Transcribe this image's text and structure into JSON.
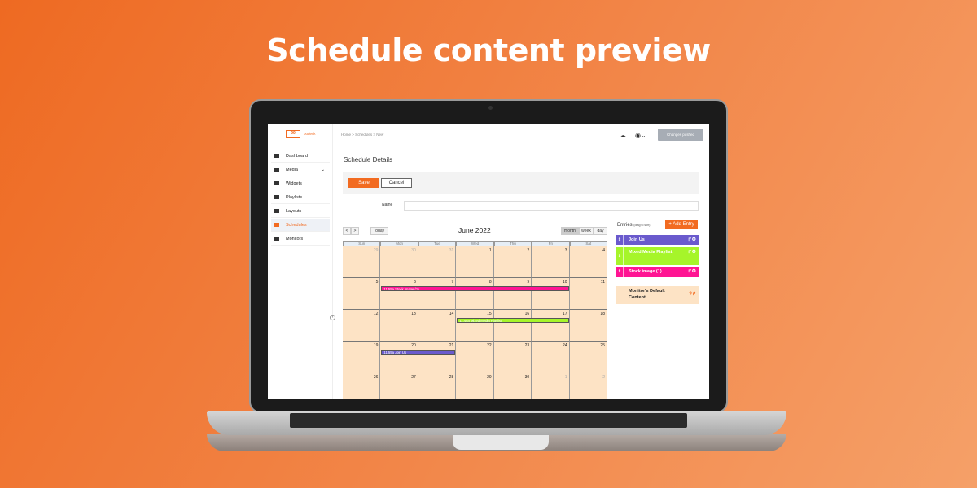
{
  "headline": "Schedule content preview",
  "colors": {
    "accent": "#f26b21",
    "join_us": "#6a5acd",
    "mixed_media": "#a6f52a",
    "stock_image": "#ff1493",
    "default_content": "#fde3c5"
  },
  "logo": {
    "mark": "99",
    "text": "podeck"
  },
  "sidebar": {
    "items": [
      {
        "label": "Dashboard",
        "icon": "bar-chart-icon"
      },
      {
        "label": "Media",
        "icon": "folder-icon",
        "chevron": "⌄"
      },
      {
        "label": "Widgets",
        "icon": "grid-icon"
      },
      {
        "label": "Playlists",
        "icon": "playlist-icon"
      },
      {
        "label": "Layouts",
        "icon": "layout-icon"
      },
      {
        "label": "Schedules",
        "icon": "calendar-icon",
        "active": true
      },
      {
        "label": "Monitors",
        "icon": "monitor-icon"
      }
    ],
    "collapse": "‹"
  },
  "header": {
    "breadcrumb": "Home > Schedules > New",
    "cloud_icon": "☁",
    "user_icon": "◉⌄",
    "status_button": "Changes pushed"
  },
  "page": {
    "title": "Schedule Details",
    "save": "Save",
    "cancel": "Cancel",
    "name_label": "Name",
    "name_value": ""
  },
  "calendar": {
    "prev": "<",
    "next": ">",
    "today": "today",
    "title": "June 2022",
    "views": [
      "month",
      "week",
      "day"
    ],
    "active_view": "month",
    "days": [
      "Sun",
      "Mon",
      "Tue",
      "Wed",
      "Thu",
      "Fri",
      "Sat"
    ],
    "weeks": [
      [
        "29",
        "30",
        "31",
        "1",
        "2",
        "3",
        "4"
      ],
      [
        "5",
        "6",
        "7",
        "8",
        "9",
        "10",
        "11"
      ],
      [
        "12",
        "13",
        "14",
        "15",
        "16",
        "17",
        "18"
      ],
      [
        "19",
        "20",
        "21",
        "22",
        "23",
        "24",
        "25"
      ],
      [
        "26",
        "27",
        "28",
        "29",
        "30",
        "1",
        "2"
      ]
    ],
    "events": [
      {
        "label": "11:55a Stock Image (1)",
        "week": 1,
        "start": 1,
        "end": 5,
        "color": "#ff1493"
      },
      {
        "label": "11:48a Mixed Media Playlist",
        "week": 2,
        "start": 3,
        "end": 5,
        "color": "#a6f52a"
      },
      {
        "label": "11:55a Join Us",
        "week": 3,
        "start": 1,
        "end": 2,
        "color": "#6a5acd"
      }
    ]
  },
  "entries": {
    "title": "Entries",
    "hint": "(drag to sort)",
    "add": "+ Add Entry",
    "items": [
      {
        "label": "Join Us",
        "icon": "video-icon",
        "color": "#6a5acd"
      },
      {
        "label": "Mixed Media Playlist",
        "icon": "playlist-icon",
        "color": "#a6f52a"
      },
      {
        "label": "Stock image (1)",
        "icon": "image-icon",
        "color": "#ff1493"
      }
    ],
    "default": {
      "label": "Monitor's Default Content"
    }
  }
}
